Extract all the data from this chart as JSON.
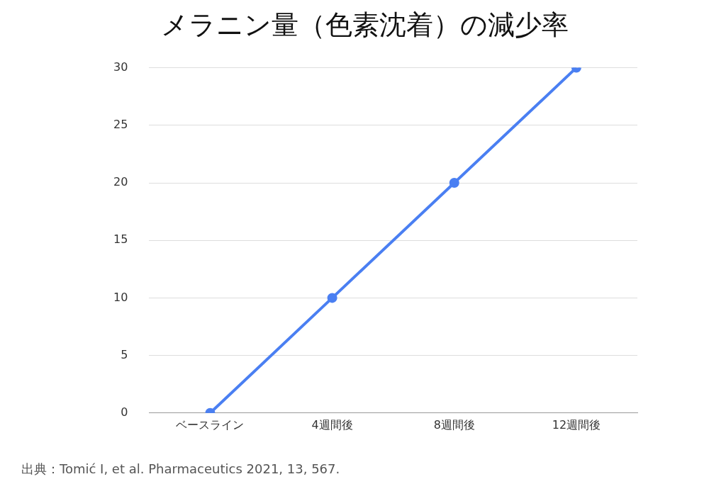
{
  "chart_data": {
    "type": "line",
    "title": "メラニン量（色素沈着）の減少率",
    "categories": [
      "ベースライン",
      "4週間後",
      "8週間後",
      "12週間後"
    ],
    "series": [
      {
        "color": "#4a7ff2",
        "values": [
          0,
          10,
          20,
          30
        ]
      }
    ],
    "ylim": [
      0,
      30
    ],
    "yticks": [
      0,
      5,
      10,
      15,
      20,
      25,
      30
    ],
    "grid": "y",
    "legend": false,
    "marker": "circle",
    "line_style": "solid",
    "annotations": [
      "出典：Tomić I, et al. Pharmaceutics 2021, 13, 567."
    ]
  }
}
